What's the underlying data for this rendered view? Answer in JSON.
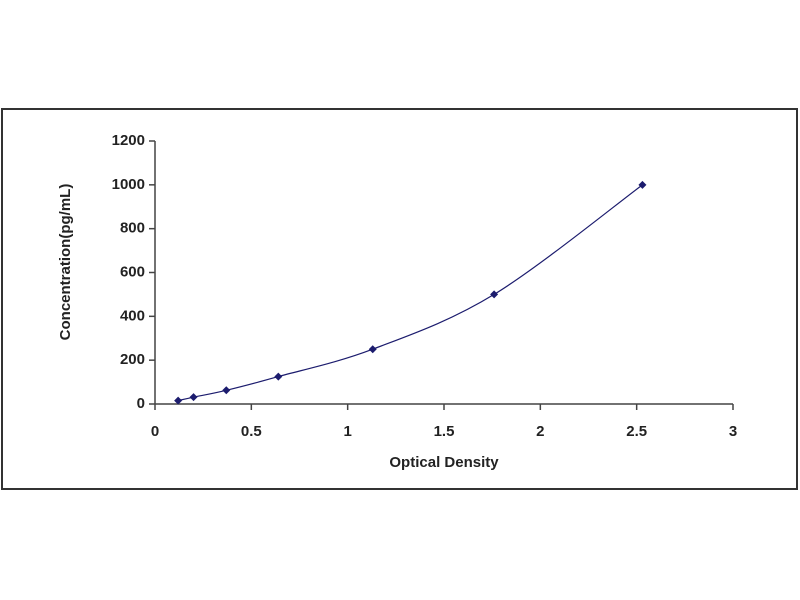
{
  "chart_data": {
    "type": "scatter",
    "xlabel": "Optical Density",
    "ylabel": "Concentration(pg/mL)",
    "x": [
      0.12,
      0.2,
      0.37,
      0.64,
      1.13,
      1.76,
      2.53
    ],
    "values": [
      15.6,
      31.2,
      62.5,
      125,
      250,
      500,
      1000
    ],
    "color": "#1c1c6e",
    "xlim": [
      0,
      3
    ],
    "xticks": [
      0,
      0.5,
      1,
      1.5,
      2,
      2.5,
      3
    ],
    "ylim": [
      0,
      1200
    ],
    "yticks": [
      0,
      200,
      400,
      600,
      800,
      1000,
      1200
    ],
    "grid": false
  }
}
